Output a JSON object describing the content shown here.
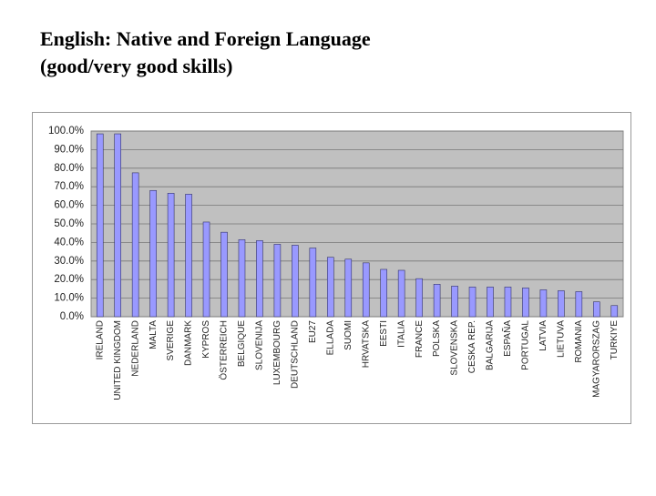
{
  "chart_data": {
    "type": "bar",
    "title": "English: Native and Foreign Language",
    "subtitle": "(good/very good skills)",
    "categories": [
      "IRELAND",
      "UNITED KINGDOM",
      "NEDERLAND",
      "MALTA",
      "SVERIGE",
      "DANMARK",
      "KYPROS",
      "ÖSTERREICH",
      "BELGIQUE",
      "SLOVENIJA",
      "LUXEMBOURG",
      "DEUTSCHLAND",
      "EU27",
      "ELLADA",
      "SUOMI",
      "HRVATSKA",
      "EESTI",
      "ITALIA",
      "FRANCE",
      "POLSKA",
      "SLOVENSKA",
      "CESKA REP.",
      "BALGARIJA",
      "ESPAÑA",
      "PORTUGAL",
      "LATVIA",
      "LIETUVA",
      "ROMANIA",
      "MAGYARORSZAG",
      "TURKIYE"
    ],
    "values": [
      98.5,
      98.5,
      77.5,
      68,
      66.5,
      66,
      51,
      45.5,
      41.5,
      41,
      39,
      38.5,
      37,
      32,
      31,
      29,
      25.5,
      25,
      20.5,
      17.5,
      16.5,
      16,
      16,
      16,
      15.5,
      14.5,
      14,
      13.5,
      8,
      6
    ],
    "color": "#9999ff",
    "ylim": [
      0,
      100
    ],
    "yticks": [
      {
        "value": 0,
        "label": "0.0%"
      },
      {
        "value": 10,
        "label": "10.0%"
      },
      {
        "value": 20,
        "label": "20.0%"
      },
      {
        "value": 30,
        "label": "30.0%"
      },
      {
        "value": 40,
        "label": "40.0%"
      },
      {
        "value": 50,
        "label": "50.0%"
      },
      {
        "value": 60,
        "label": "60.0%"
      },
      {
        "value": 70,
        "label": "70.0%"
      },
      {
        "value": 80,
        "label": "80.0%"
      },
      {
        "value": 90,
        "label": "90.0%"
      },
      {
        "value": 100,
        "label": "100.0%"
      }
    ],
    "grid": true
  }
}
